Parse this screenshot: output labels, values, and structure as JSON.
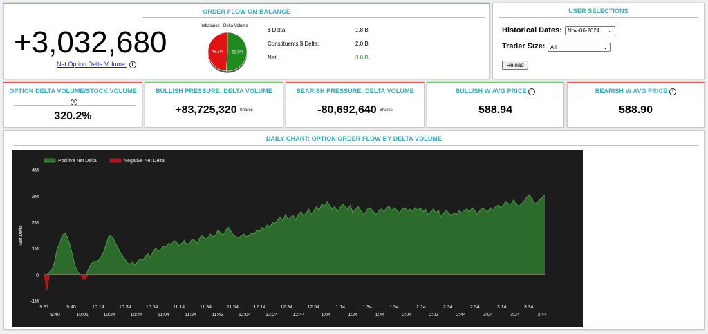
{
  "order_flow": {
    "title": "ORDER FLOW ON-BALANCE",
    "net_option_delta_volume": "+3,032,680",
    "link_label": "Net Option Delta Volume",
    "info_icon": "i",
    "pie": {
      "title": "Imbalance - Delta Volume",
      "slices": [
        {
          "label": "49.1%",
          "value": 49.1,
          "color": "#e01414"
        },
        {
          "label": "50.9%",
          "value": 50.9,
          "color": "#1e8a1e"
        }
      ]
    },
    "stats": [
      {
        "label": "$ Delta:",
        "value": "1.8 B",
        "color": "#000000"
      },
      {
        "label": "Constituents $ Delta:",
        "value": "2.0 B",
        "color": "#000000"
      },
      {
        "label": "Net:",
        "value": "3.8 B",
        "color": "#2a9d2a"
      }
    ]
  },
  "user_selections": {
    "title": "USER SELECTIONS",
    "historical_dates_label": "Historical Dates:",
    "historical_dates_value": "Nov-06-2024",
    "trader_size_label": "Trader Size:",
    "trader_size_value": "All",
    "reload_label": "Reload",
    "chevron": "⌄"
  },
  "cards": [
    {
      "title": "OPTION DELTA VOLUME/STOCK VOLUME",
      "value": "320.2%",
      "info": "i",
      "unit": "",
      "accent": "#e05a5a"
    },
    {
      "title": "BULLISH PRESSURE: DELTA VOLUME",
      "value": "+83,725,320",
      "info": "",
      "unit": "Shares",
      "accent": "#7dc27d"
    },
    {
      "title": "BEARISH PRESSURE: DELTA VOLUME",
      "value": "-80,692,640",
      "info": "",
      "unit": "Shares",
      "accent": "#e05a5a"
    },
    {
      "title": "BULLISH W AVG PRICE",
      "value": "588.94",
      "info": "i",
      "unit": "",
      "accent": "#7dc27d"
    },
    {
      "title": "BEARISH W AVG PRICE",
      "value": "588.90",
      "info": "i",
      "unit": "",
      "accent": "#e05a5a"
    }
  ],
  "daily_chart": {
    "title": "DAILY CHART: OPTION ORDER FLOW BY DELTA VOLUME"
  },
  "chart_data": {
    "type": "area",
    "ylabel": "Net Delta",
    "ylim": [
      -1000000,
      4000000
    ],
    "yticks": [
      {
        "value": 4000000,
        "label": "4M"
      },
      {
        "value": 3000000,
        "label": "3M"
      },
      {
        "value": 2000000,
        "label": "2M"
      },
      {
        "value": 1000000,
        "label": "1M"
      },
      {
        "value": 0,
        "label": "0"
      },
      {
        "value": -1000000,
        "label": "-1M"
      }
    ],
    "xlim": [
      0,
      193
    ],
    "xticks_top": [
      {
        "label": "9:31",
        "x": 0
      },
      {
        "label": "9:40",
        "x": 9
      },
      {
        "label": "10:14",
        "x": 43
      },
      {
        "label": "10:34",
        "x": 63
      },
      {
        "label": "10:54",
        "x": 83
      },
      {
        "label": "11:14",
        "x": 103
      },
      {
        "label": "11:34",
        "x": 123
      },
      {
        "label": "11:54",
        "x": 143
      },
      {
        "label": "12:14",
        "x": 163
      },
      {
        "label": "12:34",
        "x": 183
      },
      {
        "label": "12:54",
        "x": 203
      },
      {
        "label": "1:14",
        "x": 223
      },
      {
        "label": "1:34",
        "x": 243
      },
      {
        "label": "1:54",
        "x": 263
      },
      {
        "label": "2:14",
        "x": 283
      },
      {
        "label": "2:34",
        "x": 303
      },
      {
        "label": "2:54",
        "x": 323
      },
      {
        "label": "3:14",
        "x": 343
      },
      {
        "label": "3:34",
        "x": 363
      }
    ],
    "xticks_bottom": [
      {
        "label": "9:40",
        "x": 4
      },
      {
        "label": "10:01",
        "x": 14
      },
      {
        "label": "10:24",
        "x": 24
      },
      {
        "label": "10:44",
        "x": 34
      },
      {
        "label": "11:04",
        "x": 44
      },
      {
        "label": "11:24",
        "x": 54
      },
      {
        "label": "11:43",
        "x": 64
      },
      {
        "label": "12:04",
        "x": 74
      },
      {
        "label": "12:24",
        "x": 84
      },
      {
        "label": "12:44",
        "x": 94
      },
      {
        "label": "1:04",
        "x": 104
      },
      {
        "label": "1:24",
        "x": 114
      },
      {
        "label": "1:44",
        "x": 124
      },
      {
        "label": "2:04",
        "x": 134
      },
      {
        "label": "2:23",
        "x": 144
      },
      {
        "label": "2:44",
        "x": 154
      },
      {
        "label": "3:04",
        "x": 164
      },
      {
        "label": "3:24",
        "x": 174
      },
      {
        "label": "3:44",
        "x": 184
      }
    ],
    "series": [
      {
        "name": "Positive Net Delta",
        "color": "#2d6b2d",
        "line_color": "#4d9a4d"
      },
      {
        "name": "Negative Net Delta",
        "color": "#b31212",
        "line_color": "#d21b1b"
      }
    ],
    "values": [
      0,
      -600000,
      100000,
      200000,
      500000,
      1000000,
      1200000,
      1500000,
      1600000,
      1400000,
      1100000,
      700000,
      300000,
      100000,
      0,
      -200000,
      -150000,
      200000,
      400000,
      500000,
      500000,
      550000,
      700000,
      900000,
      1200000,
      1500000,
      1450000,
      1300000,
      1100000,
      900000,
      750000,
      600000,
      450000,
      400000,
      500000,
      350000,
      500000,
      600000,
      550000,
      700000,
      800000,
      650000,
      900000,
      1000000,
      900000,
      950000,
      1100000,
      1050000,
      1200000,
      1150000,
      1300000,
      1250000,
      1100000,
      1200000,
      1300000,
      1150000,
      1200000,
      1350000,
      1300000,
      1200000,
      1400000,
      1500000,
      1350000,
      1400000,
      1550000,
      1450000,
      1500000,
      1700000,
      1600000,
      1500000,
      1700000,
      1800000,
      1650000,
      1500000,
      1450000,
      1400000,
      1500000,
      1550000,
      1450000,
      1500000,
      1600000,
      1550000,
      1700000,
      1650000,
      1800000,
      1700000,
      1900000,
      1800000,
      2000000,
      1950000,
      2100000,
      2200000,
      2050000,
      2300000,
      2100000,
      2200000,
      2250000,
      2100000,
      2300000,
      2400000,
      2250000,
      2350000,
      2500000,
      2300000,
      2450000,
      2600000,
      2450000,
      2700000,
      2600000,
      2800000,
      2650000,
      2500000,
      2600000,
      2400000,
      2550000,
      2700000,
      2600000,
      2500000,
      2650000,
      2350000,
      2500000,
      2600000,
      2450000,
      2300000,
      2400000,
      2550000,
      2500000,
      2400000,
      2300000,
      2450000,
      2500000,
      2400000,
      2550000,
      2600000,
      2450000,
      2550000,
      2450000,
      2350000,
      2500000,
      2550000,
      2450000,
      2500000,
      2400000,
      2550000,
      2450000,
      2550000,
      2400000,
      2500000,
      2300000,
      2400000,
      2500000,
      2350000,
      2450000,
      2200000,
      2350000,
      2450000,
      2350000,
      2250000,
      2350000,
      2300000,
      2450000,
      2350000,
      2450000,
      2500000,
      2400000,
      2550000,
      2450000,
      2300000,
      2450000,
      2550000,
      2450000,
      2400000,
      2550000,
      2450000,
      2600000,
      2650000,
      2550000,
      2650000,
      2800000,
      2700000,
      2700000,
      2850000,
      2700000,
      2600000,
      2700000,
      2800000,
      2950000,
      3050000,
      2900000,
      2700000,
      2750000,
      2850000,
      2950000,
      3050000
    ]
  }
}
